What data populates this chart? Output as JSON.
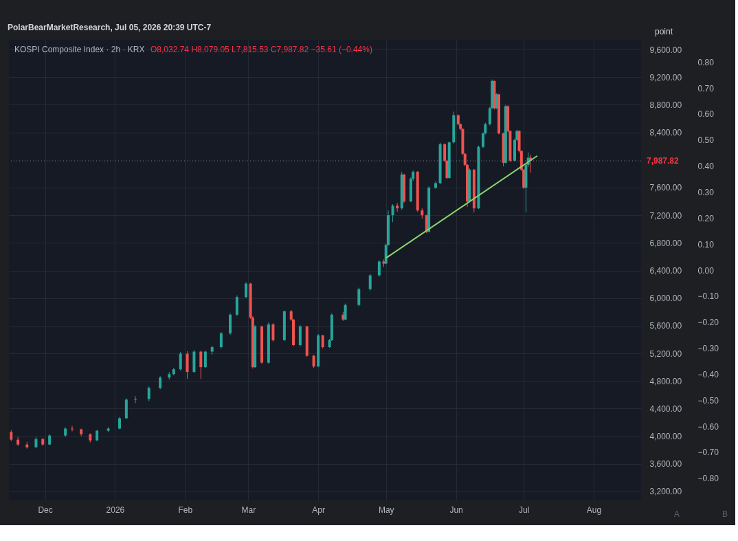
{
  "chart_data": {
    "type": "candlestick",
    "title": "KOSPI Composite Index · 2h · KRX",
    "subtitle": "O8,032.74 H8,079.05 L7,815.53 C7,987.82 −35.61 (−0.44%)",
    "annotations": [
      "PolarBearMarketResearch, Jul 05, 2026 20:39 UTC-7",
      "point",
      "A",
      "B"
    ],
    "x": [
      "2025-11-16",
      "2025-11-19",
      "2025-11-23",
      "2025-11-27",
      "2025-11-30",
      "2025-12-03",
      "2025-12-10",
      "2025-12-13",
      "2025-12-17",
      "2025-12-21",
      "2025-12-24",
      "2025-12-29",
      "2026-01-03",
      "2026-01-06",
      "2026-01-10",
      "2026-01-16",
      "2026-01-21",
      "2026-01-25",
      "2026-01-27",
      "2026-01-30",
      "2026-02-02",
      "2026-02-05",
      "2026-02-08",
      "2026-02-10",
      "2026-02-13",
      "2026-02-17",
      "2026-02-21",
      "2026-02-24",
      "2026-02-28",
      "2026-03-02",
      "2026-03-03",
      "2026-03-04",
      "2026-03-07",
      "2026-03-10",
      "2026-03-12",
      "2026-03-17",
      "2026-03-20",
      "2026-03-21",
      "2026-03-24",
      "2026-03-27",
      "2026-03-30",
      "2026-04-01",
      "2026-04-03",
      "2026-04-06",
      "2026-04-07",
      "2026-04-12",
      "2026-04-13",
      "2026-04-19",
      "2026-04-24",
      "2026-04-28",
      "2026-04-30",
      "2026-05-01",
      "2026-05-02",
      "2026-05-04",
      "2026-05-06",
      "2026-05-08",
      "2026-05-09",
      "2026-05-12",
      "2026-05-13",
      "2026-05-15",
      "2026-05-17",
      "2026-05-19",
      "2026-05-20",
      "2026-05-23",
      "2026-05-25",
      "2026-05-27",
      "2026-05-28",
      "2026-05-29",
      "2026-05-31",
      "2026-06-02",
      "2026-06-03",
      "2026-06-04",
      "2026-06-05",
      "2026-06-06",
      "2026-06-07",
      "2026-06-09",
      "2026-06-11",
      "2026-06-13",
      "2026-06-14",
      "2026-06-16",
      "2026-06-17",
      "2026-06-18",
      "2026-06-19",
      "2026-06-20",
      "2026-06-22",
      "2026-06-23",
      "2026-06-24",
      "2026-06-25",
      "2026-06-27",
      "2026-06-28",
      "2026-06-29",
      "2026-06-30",
      "2026-07-01",
      "2026-07-02",
      "2026-07-03",
      "2026-07-04"
    ],
    "ohlc": [
      [
        4060,
        4090,
        3930,
        3950
      ],
      [
        3950,
        3990,
        3860,
        3880
      ],
      [
        3880,
        3920,
        3820,
        3840
      ],
      [
        3840,
        3990,
        3830,
        3960
      ],
      [
        3960,
        3970,
        3860,
        3880
      ],
      [
        3880,
        4030,
        3870,
        4010
      ],
      [
        4010,
        4130,
        3990,
        4110
      ],
      [
        4110,
        4150,
        4070,
        4100
      ],
      [
        4100,
        4110,
        4000,
        4030
      ],
      [
        4030,
        4040,
        3910,
        3940
      ],
      [
        3940,
        4090,
        3930,
        4080
      ],
      [
        4080,
        4130,
        4060,
        4110
      ],
      [
        4110,
        4280,
        4100,
        4260
      ],
      [
        4260,
        4550,
        4250,
        4530
      ],
      [
        4530,
        4580,
        4480,
        4540
      ],
      [
        4540,
        4720,
        4510,
        4700
      ],
      [
        4700,
        4870,
        4680,
        4850
      ],
      [
        4850,
        4930,
        4820,
        4900
      ],
      [
        4900,
        4990,
        4880,
        4970
      ],
      [
        4970,
        5220,
        4950,
        5195
      ],
      [
        5195,
        5230,
        4830,
        4930
      ],
      [
        4930,
        5250,
        4920,
        5225
      ],
      [
        5225,
        5240,
        4830,
        5000
      ],
      [
        5000,
        5240,
        4990,
        5225
      ],
      [
        5225,
        5310,
        5180,
        5290
      ],
      [
        5290,
        5510,
        5270,
        5490
      ],
      [
        5490,
        5780,
        5470,
        5760
      ],
      [
        5760,
        6040,
        5740,
        6015
      ],
      [
        6015,
        6230,
        6000,
        6210
      ],
      [
        6210,
        6220,
        5700,
        5720
      ],
      [
        5720,
        5740,
        4980,
        5000
      ],
      [
        5000,
        5610,
        4990,
        5590
      ],
      [
        5590,
        5600,
        5050,
        5065
      ],
      [
        5065,
        5650,
        5050,
        5620
      ],
      [
        5620,
        5640,
        5370,
        5390
      ],
      [
        5390,
        5820,
        5380,
        5810
      ],
      [
        5810,
        5830,
        5670,
        5690
      ],
      [
        5690,
        5700,
        5300,
        5320
      ],
      [
        5320,
        5610,
        5300,
        5590
      ],
      [
        5590,
        5600,
        5150,
        5165
      ],
      [
        5165,
        5180,
        4990,
        5010
      ],
      [
        5010,
        5480,
        5000,
        5460
      ],
      [
        5460,
        5470,
        5270,
        5290
      ],
      [
        5290,
        5410,
        5280,
        5390
      ],
      [
        5390,
        5780,
        5380,
        5760
      ],
      [
        5760,
        5800,
        5670,
        5690
      ],
      [
        5690,
        5920,
        5680,
        5900
      ],
      [
        5900,
        6150,
        5880,
        6130
      ],
      [
        6130,
        6350,
        6110,
        6330
      ],
      [
        6330,
        6550,
        6310,
        6530
      ],
      [
        6530,
        6560,
        6450,
        6500
      ],
      [
        6500,
        6790,
        6490,
        6770
      ],
      [
        6770,
        7270,
        6760,
        7200
      ],
      [
        7200,
        7360,
        7100,
        7340
      ],
      [
        7340,
        7380,
        7250,
        7300
      ],
      [
        7300,
        7830,
        7280,
        7790
      ],
      [
        7790,
        7800,
        7380,
        7400
      ],
      [
        7400,
        7750,
        7390,
        7730
      ],
      [
        7730,
        7850,
        7700,
        7830
      ],
      [
        7830,
        7840,
        7250,
        7270
      ],
      [
        7270,
        7300,
        7150,
        7200
      ],
      [
        7200,
        7210,
        6940,
        6960
      ],
      [
        6960,
        7620,
        6950,
        7600
      ],
      [
        7600,
        7690,
        7580,
        7665
      ],
      [
        7665,
        8250,
        7650,
        8230
      ],
      [
        8230,
        8240,
        7970,
        7990
      ],
      [
        7990,
        8000,
        7720,
        7740
      ],
      [
        7740,
        8270,
        7730,
        8255
      ],
      [
        8255,
        8700,
        8240,
        8650
      ],
      [
        8650,
        8660,
        8500,
        8520
      ],
      [
        8520,
        8530,
        8430,
        8450
      ],
      [
        8450,
        8460,
        8070,
        8090
      ],
      [
        8090,
        8100,
        7910,
        7930
      ],
      [
        7930,
        7940,
        7320,
        7400
      ],
      [
        7400,
        7880,
        7390,
        7860
      ],
      [
        7860,
        7870,
        7240,
        7300
      ],
      [
        7300,
        8210,
        7290,
        8190
      ],
      [
        8190,
        8400,
        8170,
        8385
      ],
      [
        8385,
        8540,
        8370,
        8520
      ],
      [
        8520,
        8770,
        8500,
        8750
      ],
      [
        8750,
        9165,
        8740,
        9145
      ],
      [
        9145,
        9150,
        8730,
        8750
      ],
      [
        8750,
        8970,
        8740,
        8950
      ],
      [
        8950,
        8960,
        8370,
        8385
      ],
      [
        8385,
        8400,
        7910,
        7960
      ],
      [
        7960,
        8800,
        7950,
        8780
      ],
      [
        8780,
        8790,
        8400,
        8420
      ],
      [
        8420,
        8430,
        7970,
        7990
      ],
      [
        7990,
        8310,
        7980,
        8290
      ],
      [
        8290,
        8440,
        8280,
        8420
      ],
      [
        8420,
        8430,
        8110,
        8130
      ],
      [
        8130,
        8140,
        7840,
        7860
      ],
      [
        7860,
        7870,
        7580,
        7600
      ],
      [
        7600,
        7950,
        7240,
        7930
      ],
      [
        7930,
        8110,
        7900,
        8032.74
      ],
      [
        8032.74,
        8079.05,
        7815.53,
        7987.82
      ]
    ],
    "colors": [
      "#ef5350",
      "#ef5350",
      "#ef5350",
      "#26a69a",
      "#ef5350",
      "#26a69a",
      "#26a69a",
      "#ef5350",
      "#ef5350",
      "#ef5350",
      "#26a69a",
      "#26a69a",
      "#26a69a",
      "#26a69a",
      "#26a69a",
      "#26a69a",
      "#26a69a",
      "#26a69a",
      "#26a69a",
      "#26a69a",
      "#ef5350",
      "#26a69a",
      "#ef5350",
      "#26a69a",
      "#26a69a",
      "#26a69a",
      "#26a69a",
      "#26a69a",
      "#26a69a",
      "#ef5350",
      "#ef5350",
      "#26a69a",
      "#ef5350",
      "#26a69a",
      "#ef5350",
      "#26a69a",
      "#ef5350",
      "#ef5350",
      "#26a69a",
      "#ef5350",
      "#ef5350",
      "#26a69a",
      "#ef5350",
      "#26a69a",
      "#26a69a",
      "#ef5350",
      "#26a69a",
      "#26a69a",
      "#26a69a",
      "#26a69a",
      "#ef5350",
      "#26a69a",
      "#26a69a",
      "#26a69a",
      "#ef5350",
      "#26a69a",
      "#ef5350",
      "#26a69a",
      "#26a69a",
      "#ef5350",
      "#ef5350",
      "#ef5350",
      "#26a69a",
      "#26a69a",
      "#26a69a",
      "#ef5350",
      "#ef5350",
      "#26a69a",
      "#26a69a",
      "#ef5350",
      "#ef5350",
      "#ef5350",
      "#ef5350",
      "#ef5350",
      "#26a69a",
      "#ef5350",
      "#26a69a",
      "#26a69a",
      "#26a69a",
      "#26a69a",
      "#26a69a",
      "#ef5350",
      "#26a69a",
      "#ef5350",
      "#ef5350",
      "#26a69a",
      "#ef5350",
      "#ef5350",
      "#26a69a",
      "#26a69a",
      "#ef5350",
      "#ef5350",
      "#ef5350",
      "#26a69a",
      "#26a69a",
      "#ef5350"
    ],
    "series": [
      {
        "type": "line",
        "x": [
          "2026-05-01",
          "2026-07-07"
        ],
        "values": [
          6580,
          8060
        ],
        "color": "#8bd36f"
      }
    ],
    "ref_lines": [
      {
        "axis": "y",
        "value": 7987.82,
        "label": "7,987.82",
        "color": "#787b86",
        "line_style": "dotted"
      }
    ],
    "xlim": [
      "2025-11-15",
      "2026-08-22"
    ],
    "xticks": [
      {
        "value": "2025-12-01",
        "label": "Dec"
      },
      {
        "value": "2026-01-01",
        "label": "2026"
      },
      {
        "value": "2026-02-01",
        "label": "Feb"
      },
      {
        "value": "2026-03-01",
        "label": "Mar"
      },
      {
        "value": "2026-04-01",
        "label": "Apr"
      },
      {
        "value": "2026-05-01",
        "label": "May"
      },
      {
        "value": "2026-06-01",
        "label": "Jun"
      },
      {
        "value": "2026-07-01",
        "label": "Jul"
      },
      {
        "value": "2026-08-01",
        "label": "Aug"
      }
    ],
    "ylim": [
      3070,
      9740
    ],
    "yticks": [
      {
        "value": 3200,
        "label": "3,200.00"
      },
      {
        "value": 3600,
        "label": "3,600.00"
      },
      {
        "value": 4000,
        "label": "4,000.00"
      },
      {
        "value": 4400,
        "label": "4,400.00"
      },
      {
        "value": 4800,
        "label": "4,800.00"
      },
      {
        "value": 5200,
        "label": "5,200.00"
      },
      {
        "value": 5600,
        "label": "5,600.00"
      },
      {
        "value": 6000,
        "label": "6,000.00"
      },
      {
        "value": 6400,
        "label": "6,400.00"
      },
      {
        "value": 6800,
        "label": "6,800.00"
      },
      {
        "value": 7200,
        "label": "7,200.00"
      },
      {
        "value": 7600,
        "label": "7,600.00"
      },
      {
        "value": 8400,
        "label": "8,400.00"
      },
      {
        "value": 8800,
        "label": "8,800.00"
      },
      {
        "value": 9200,
        "label": "9,200.00"
      },
      {
        "value": 9600,
        "label": "9,600.00"
      }
    ],
    "y2lim": [
      -0.885,
      0.885
    ],
    "y2ticks": [
      {
        "value": -0.8,
        "label": "−0.80"
      },
      {
        "value": -0.7,
        "label": "−0.70"
      },
      {
        "value": -0.6,
        "label": "−0.60"
      },
      {
        "value": -0.5,
        "label": "−0.50"
      },
      {
        "value": -0.4,
        "label": "−0.40"
      },
      {
        "value": -0.3,
        "label": "−0.30"
      },
      {
        "value": -0.2,
        "label": "−0.20"
      },
      {
        "value": -0.1,
        "label": "−0.10"
      },
      {
        "value": 0,
        "label": "0.00"
      },
      {
        "value": 0.1,
        "label": "0.10"
      },
      {
        "value": 0.2,
        "label": "0.20"
      },
      {
        "value": 0.3,
        "label": "0.30"
      },
      {
        "value": 0.4,
        "label": "0.40"
      },
      {
        "value": 0.5,
        "label": "0.50"
      },
      {
        "value": 0.6,
        "label": "0.60"
      },
      {
        "value": 0.7,
        "label": "0.70"
      },
      {
        "value": 0.8,
        "label": "0.80"
      }
    ],
    "grid": true
  }
}
